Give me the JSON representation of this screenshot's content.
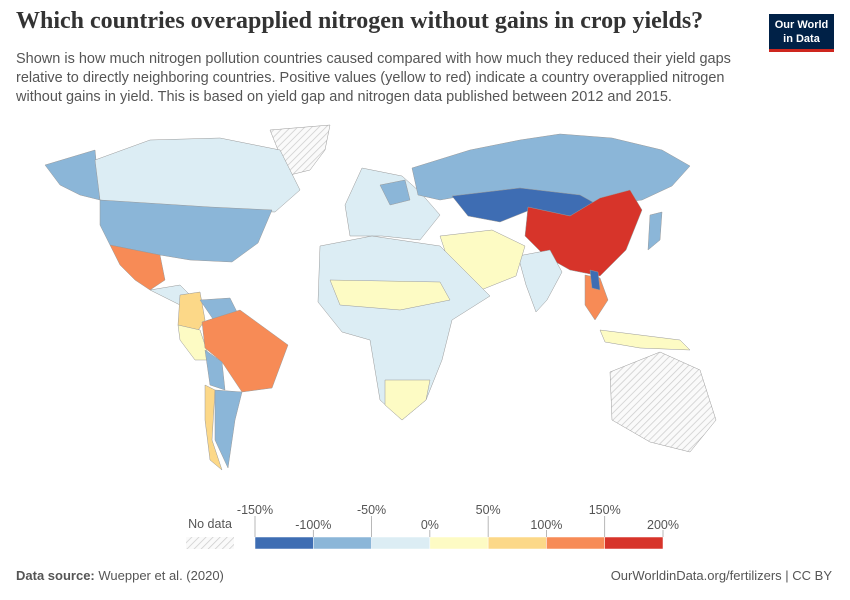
{
  "header": {
    "title": "Which countries overapplied nitrogen without gains in crop yields?",
    "subtitle": [
      "Shown is how much nitrogen pollution countries caused compared with how much they reduced their yield gaps",
      "relative to directly neighboring countries. Positive values (yellow to red) indicate a country overapplied nitrogen",
      "without gains in yield. This is based on yield gap and nitrogen data published between 2012 and 2015."
    ],
    "logo": [
      "Our World",
      "in Data"
    ]
  },
  "legend": {
    "no_data": "No data",
    "ticks": [
      {
        "value": -150,
        "label": "-150%"
      },
      {
        "value": -100,
        "label": "-100%"
      },
      {
        "value": -50,
        "label": "-50%"
      },
      {
        "value": 0,
        "label": "0%"
      },
      {
        "value": 50,
        "label": "50%"
      },
      {
        "value": 100,
        "label": "100%"
      },
      {
        "value": 150,
        "label": "150%"
      },
      {
        "value": 200,
        "label": "200%"
      }
    ],
    "colors": [
      "#3e6db3",
      "#8bb6d8",
      "#dcedf4",
      "#fdfbc4",
      "#fcd888",
      "#f78b56",
      "#d7342a"
    ]
  },
  "footer": {
    "source_label": "Data source:",
    "source": "Wuepper et al. (2020)",
    "link": "OurWorldinData.org/fertilizers | CC BY"
  }
}
